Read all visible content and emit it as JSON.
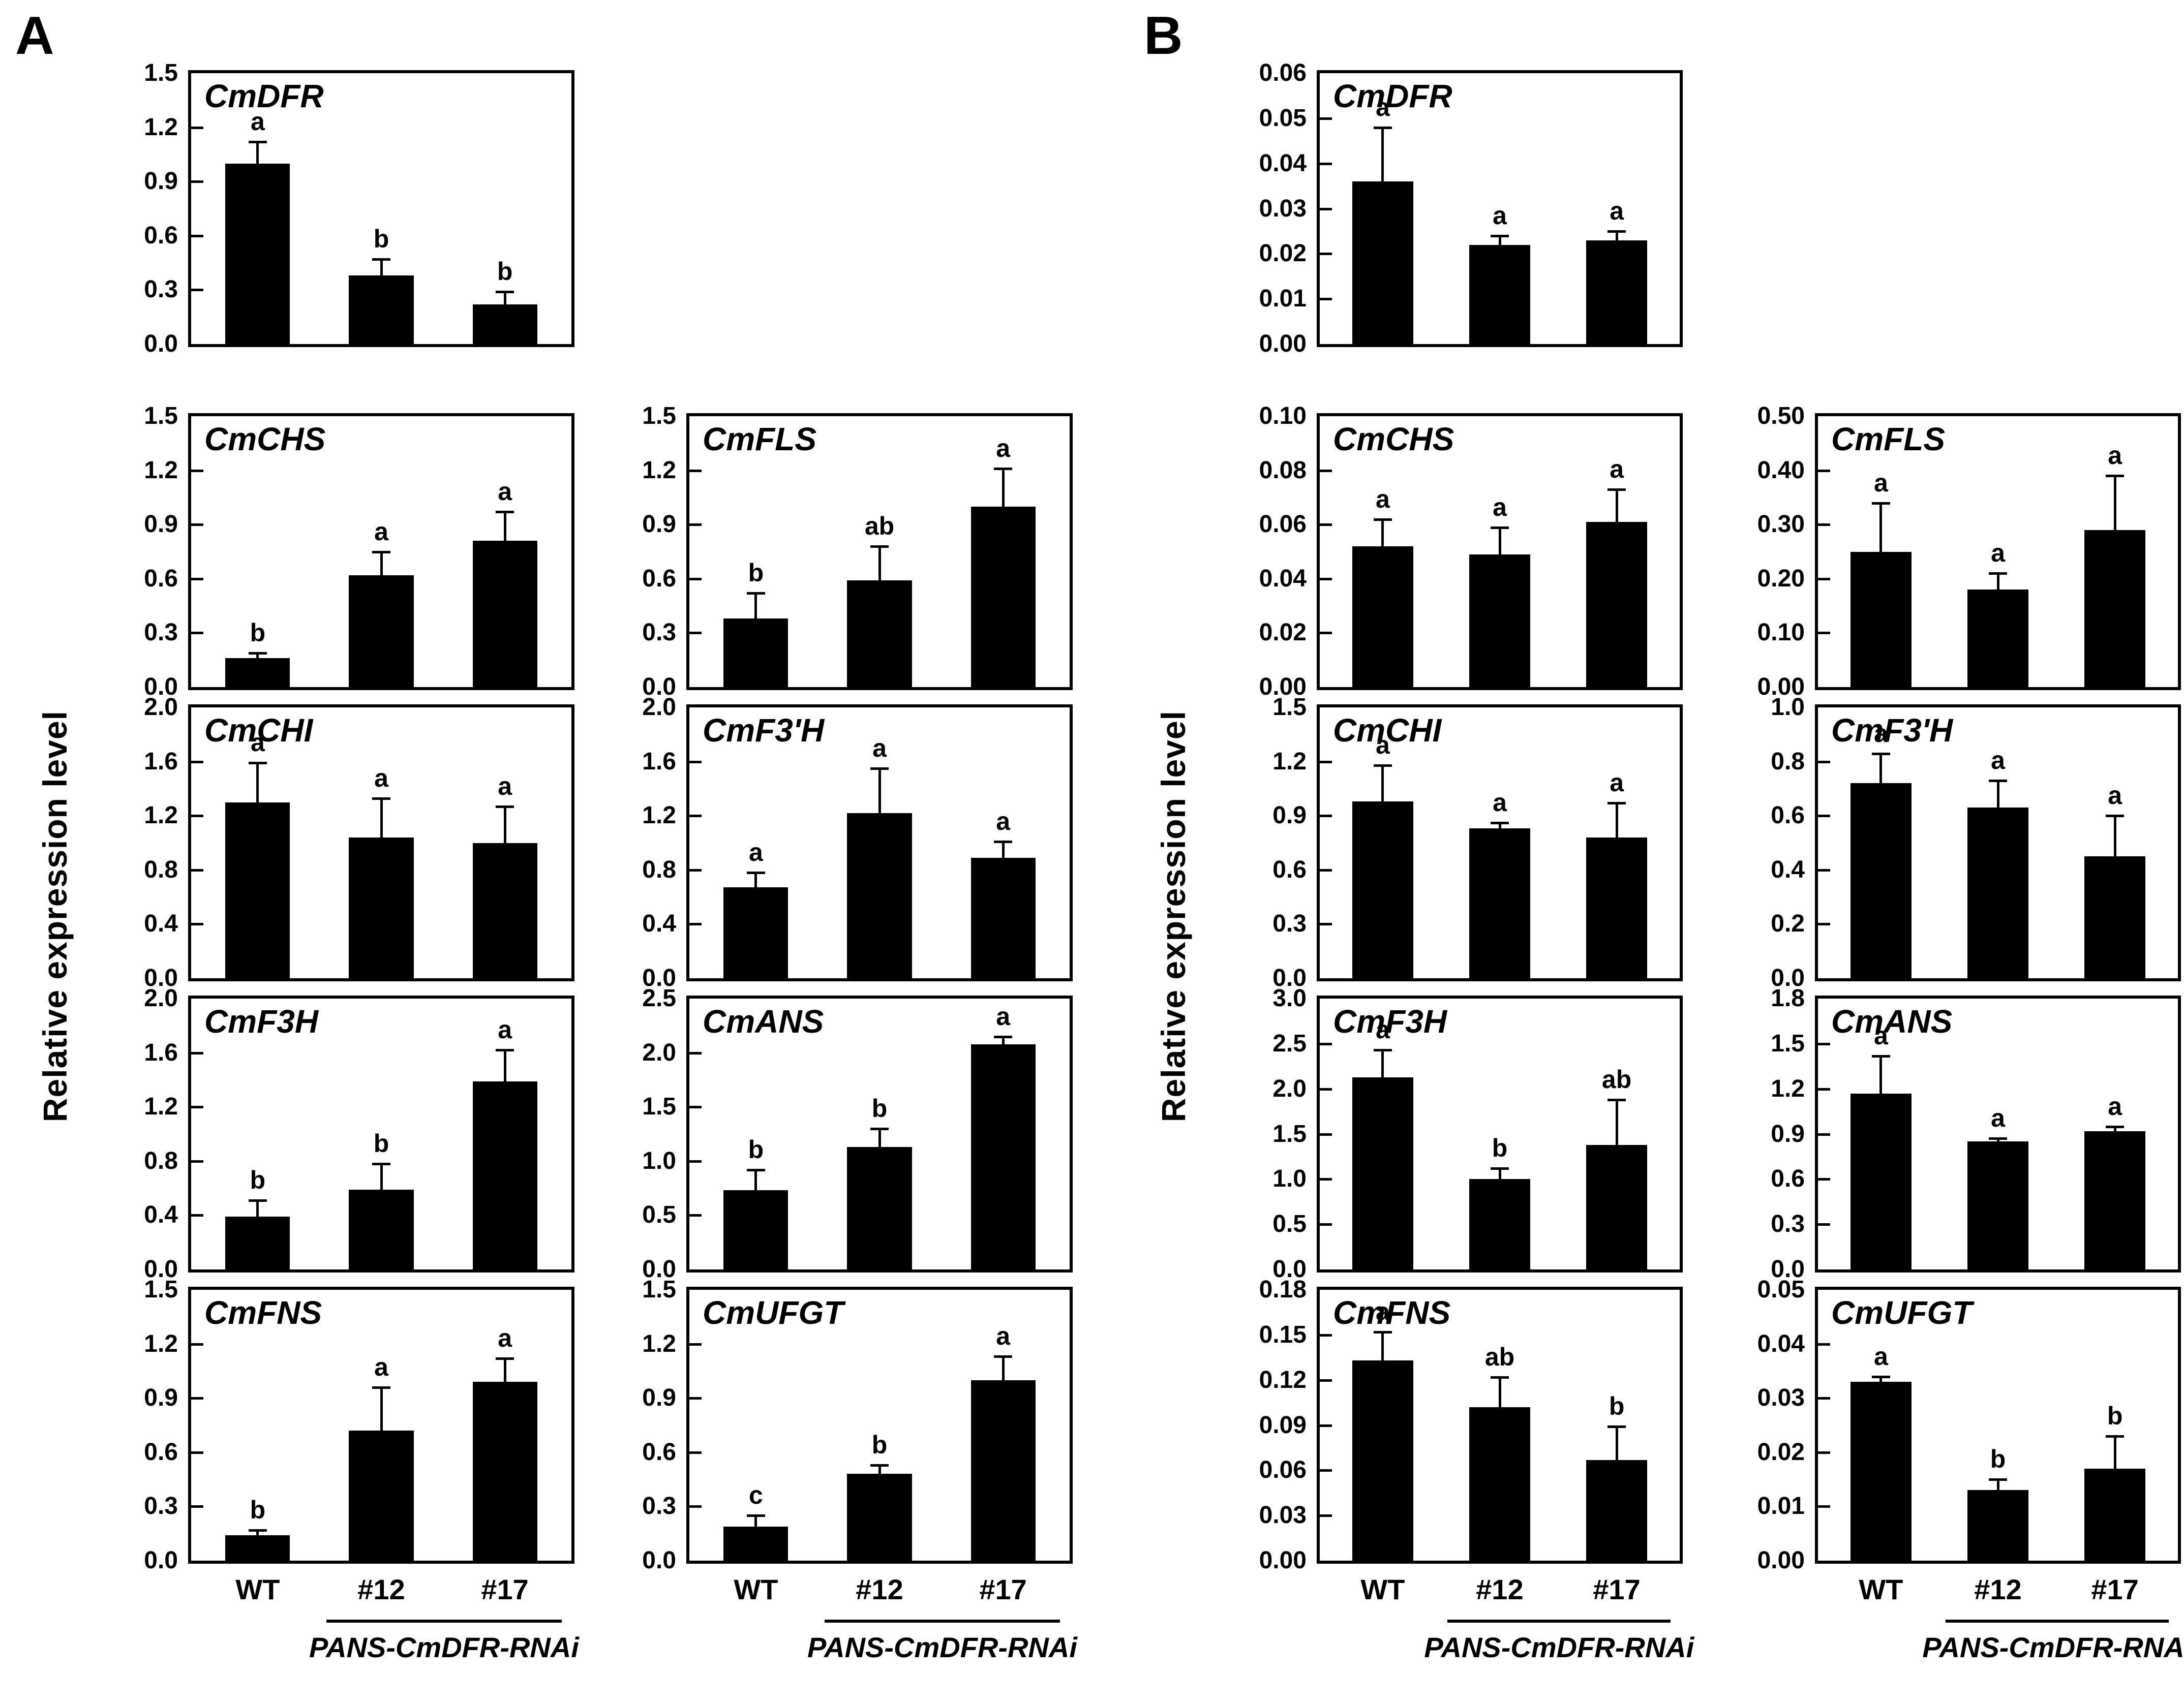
{
  "panels": [
    {
      "id": "A",
      "label": "A",
      "ylabel": "Relative expression level"
    },
    {
      "id": "B",
      "label": "B",
      "ylabel": "Relative expression level"
    }
  ],
  "x_axis": {
    "categories": [
      "WT",
      "#12",
      "#17"
    ],
    "group_label": "PANS-CmDFR-RNAi"
  },
  "colors": {
    "bar": "#000000",
    "axis": "#000000",
    "background": "#ffffff"
  },
  "chart_data": [
    {
      "panel": "A",
      "row": 0,
      "col": 0,
      "type": "bar",
      "title": "CmDFR",
      "categories": [
        "WT",
        "#12",
        "#17"
      ],
      "values": [
        1.0,
        0.38,
        0.22
      ],
      "errors": [
        0.12,
        0.09,
        0.07
      ],
      "sig_letters": [
        "a",
        "b",
        "b"
      ],
      "ylim": [
        0,
        1.5
      ],
      "ytick_step": 0.3,
      "ytick_decimals": 1,
      "show_x_labels": false
    },
    {
      "panel": "A",
      "row": 1,
      "col": 0,
      "type": "bar",
      "title": "CmCHS",
      "categories": [
        "WT",
        "#12",
        "#17"
      ],
      "values": [
        0.16,
        0.62,
        0.81
      ],
      "errors": [
        0.03,
        0.13,
        0.16
      ],
      "sig_letters": [
        "b",
        "a",
        "a"
      ],
      "ylim": [
        0,
        1.5
      ],
      "ytick_step": 0.3,
      "ytick_decimals": 1,
      "show_x_labels": false
    },
    {
      "panel": "A",
      "row": 1,
      "col": 1,
      "type": "bar",
      "title": "CmFLS",
      "categories": [
        "WT",
        "#12",
        "#17"
      ],
      "values": [
        0.38,
        0.59,
        1.0
      ],
      "errors": [
        0.14,
        0.19,
        0.21
      ],
      "sig_letters": [
        "b",
        "ab",
        "a"
      ],
      "ylim": [
        0,
        1.5
      ],
      "ytick_step": 0.3,
      "ytick_decimals": 1,
      "show_x_labels": false
    },
    {
      "panel": "A",
      "row": 2,
      "col": 0,
      "type": "bar",
      "title": "CmCHI",
      "categories": [
        "WT",
        "#12",
        "#17"
      ],
      "values": [
        1.3,
        1.04,
        1.0
      ],
      "errors": [
        0.29,
        0.29,
        0.27
      ],
      "sig_letters": [
        "a",
        "a",
        "a"
      ],
      "ylim": [
        0,
        2.0
      ],
      "ytick_step": 0.4,
      "ytick_decimals": 1,
      "show_x_labels": false
    },
    {
      "panel": "A",
      "row": 2,
      "col": 1,
      "type": "bar",
      "title": "CmF3'H",
      "categories": [
        "WT",
        "#12",
        "#17"
      ],
      "values": [
        0.67,
        1.22,
        0.89
      ],
      "errors": [
        0.11,
        0.33,
        0.12
      ],
      "sig_letters": [
        "a",
        "a",
        "a"
      ],
      "ylim": [
        0,
        2.0
      ],
      "ytick_step": 0.4,
      "ytick_decimals": 1,
      "show_x_labels": false
    },
    {
      "panel": "A",
      "row": 3,
      "col": 0,
      "type": "bar",
      "title": "CmF3H",
      "categories": [
        "WT",
        "#12",
        "#17"
      ],
      "values": [
        0.39,
        0.59,
        1.39
      ],
      "errors": [
        0.12,
        0.19,
        0.23
      ],
      "sig_letters": [
        "b",
        "b",
        "a"
      ],
      "ylim": [
        0,
        2.0
      ],
      "ytick_step": 0.4,
      "ytick_decimals": 1,
      "show_x_labels": false
    },
    {
      "panel": "A",
      "row": 3,
      "col": 1,
      "type": "bar",
      "title": "CmANS",
      "categories": [
        "WT",
        "#12",
        "#17"
      ],
      "values": [
        0.73,
        1.13,
        2.08
      ],
      "errors": [
        0.19,
        0.17,
        0.07
      ],
      "sig_letters": [
        "b",
        "b",
        "a"
      ],
      "ylim": [
        0,
        2.5
      ],
      "ytick_step": 0.5,
      "ytick_decimals": 1,
      "show_x_labels": false
    },
    {
      "panel": "A",
      "row": 4,
      "col": 0,
      "type": "bar",
      "title": "CmFNS",
      "categories": [
        "WT",
        "#12",
        "#17"
      ],
      "values": [
        0.14,
        0.72,
        0.99
      ],
      "errors": [
        0.03,
        0.24,
        0.13
      ],
      "sig_letters": [
        "b",
        "a",
        "a"
      ],
      "ylim": [
        0,
        1.5
      ],
      "ytick_step": 0.3,
      "ytick_decimals": 1,
      "show_x_labels": true
    },
    {
      "panel": "A",
      "row": 4,
      "col": 1,
      "type": "bar",
      "title": "CmUFGT",
      "categories": [
        "WT",
        "#12",
        "#17"
      ],
      "values": [
        0.19,
        0.48,
        1.0
      ],
      "errors": [
        0.06,
        0.05,
        0.13
      ],
      "sig_letters": [
        "c",
        "b",
        "a"
      ],
      "ylim": [
        0,
        1.5
      ],
      "ytick_step": 0.3,
      "ytick_decimals": 1,
      "show_x_labels": true
    },
    {
      "panel": "B",
      "row": 0,
      "col": 0,
      "type": "bar",
      "title": "CmDFR",
      "categories": [
        "WT",
        "#12",
        "#17"
      ],
      "values": [
        0.036,
        0.022,
        0.023
      ],
      "errors": [
        0.012,
        0.002,
        0.002
      ],
      "sig_letters": [
        "a",
        "a",
        "a"
      ],
      "ylim": [
        0,
        0.06
      ],
      "ytick_step": 0.01,
      "ytick_decimals": 2,
      "show_x_labels": false
    },
    {
      "panel": "B",
      "row": 1,
      "col": 0,
      "type": "bar",
      "title": "CmCHS",
      "categories": [
        "WT",
        "#12",
        "#17"
      ],
      "values": [
        0.052,
        0.049,
        0.061
      ],
      "errors": [
        0.01,
        0.01,
        0.012
      ],
      "sig_letters": [
        "a",
        "a",
        "a"
      ],
      "ylim": [
        0,
        0.1
      ],
      "ytick_step": 0.02,
      "ytick_decimals": 2,
      "show_x_labels": false
    },
    {
      "panel": "B",
      "row": 1,
      "col": 1,
      "type": "bar",
      "title": "CmFLS",
      "categories": [
        "WT",
        "#12",
        "#17"
      ],
      "values": [
        0.25,
        0.18,
        0.29
      ],
      "errors": [
        0.09,
        0.03,
        0.1
      ],
      "sig_letters": [
        "a",
        "a",
        "a"
      ],
      "ylim": [
        0,
        0.5
      ],
      "ytick_step": 0.1,
      "ytick_decimals": 2,
      "show_x_labels": false
    },
    {
      "panel": "B",
      "row": 2,
      "col": 0,
      "type": "bar",
      "title": "CmCHI",
      "categories": [
        "WT",
        "#12",
        "#17"
      ],
      "values": [
        0.98,
        0.83,
        0.78
      ],
      "errors": [
        0.2,
        0.03,
        0.19
      ],
      "sig_letters": [
        "a",
        "a",
        "a"
      ],
      "ylim": [
        0,
        1.5
      ],
      "ytick_step": 0.3,
      "ytick_decimals": 1,
      "show_x_labels": false
    },
    {
      "panel": "B",
      "row": 2,
      "col": 1,
      "type": "bar",
      "title": "CmF3'H",
      "categories": [
        "WT",
        "#12",
        "#17"
      ],
      "values": [
        0.72,
        0.63,
        0.45
      ],
      "errors": [
        0.11,
        0.1,
        0.15
      ],
      "sig_letters": [
        "a",
        "a",
        "a"
      ],
      "ylim": [
        0,
        1.0
      ],
      "ytick_step": 0.2,
      "ytick_decimals": 1,
      "show_x_labels": false
    },
    {
      "panel": "B",
      "row": 3,
      "col": 0,
      "type": "bar",
      "title": "CmF3H",
      "categories": [
        "WT",
        "#12",
        "#17"
      ],
      "values": [
        2.13,
        1.0,
        1.38
      ],
      "errors": [
        0.3,
        0.12,
        0.5
      ],
      "sig_letters": [
        "a",
        "b",
        "ab"
      ],
      "ylim": [
        0,
        3.0
      ],
      "ytick_step": 0.5,
      "ytick_decimals": 1,
      "show_x_labels": false
    },
    {
      "panel": "B",
      "row": 3,
      "col": 1,
      "type": "bar",
      "title": "CmANS",
      "categories": [
        "WT",
        "#12",
        "#17"
      ],
      "values": [
        1.17,
        0.85,
        0.92
      ],
      "errors": [
        0.25,
        0.02,
        0.03
      ],
      "sig_letters": [
        "a",
        "a",
        "a"
      ],
      "ylim": [
        0,
        1.8
      ],
      "ytick_step": 0.3,
      "ytick_decimals": 1,
      "show_x_labels": false
    },
    {
      "panel": "B",
      "row": 4,
      "col": 0,
      "type": "bar",
      "title": "CmFNS",
      "categories": [
        "WT",
        "#12",
        "#17"
      ],
      "values": [
        0.133,
        0.102,
        0.067
      ],
      "errors": [
        0.019,
        0.02,
        0.022
      ],
      "sig_letters": [
        "a",
        "ab",
        "b"
      ],
      "ylim": [
        0,
        0.18
      ],
      "ytick_step": 0.03,
      "ytick_decimals": 2,
      "show_x_labels": true
    },
    {
      "panel": "B",
      "row": 4,
      "col": 1,
      "type": "bar",
      "title": "CmUFGT",
      "categories": [
        "WT",
        "#12",
        "#17"
      ],
      "values": [
        0.033,
        0.013,
        0.017
      ],
      "errors": [
        0.001,
        0.002,
        0.006
      ],
      "sig_letters": [
        "a",
        "b",
        "b"
      ],
      "ylim": [
        0,
        0.05
      ],
      "ytick_step": 0.01,
      "ytick_decimals": 2,
      "show_x_labels": true
    }
  ]
}
